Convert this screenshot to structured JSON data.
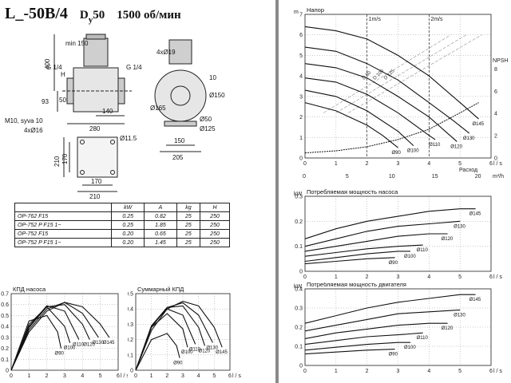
{
  "header": {
    "model": "L_-50B/4",
    "dn_prefix": "D",
    "dn_sub": "y",
    "dn_value": "50",
    "speed": "1500 об/мин"
  },
  "drawing": {
    "dims": [
      "min 150",
      "400",
      "G 1/4",
      "G 1/4",
      "4xØ19",
      "H",
      "93",
      "50",
      "140",
      "280",
      "M10, syva 10",
      "4xØ16",
      "Ø165",
      "Ø150",
      "10",
      "Ø50",
      "Ø125",
      "150",
      "205",
      "Ø11.5",
      "210",
      "170",
      "170",
      "210"
    ]
  },
  "spec_table": {
    "headers": [
      "",
      "kW",
      "A",
      "kg",
      "H"
    ],
    "rows": [
      [
        "OP-762 F15",
        "0.25",
        "0.82",
        "25",
        "250"
      ],
      [
        "OP-752 P F15 1~",
        "0.25",
        "1.85",
        "25",
        "250"
      ],
      [
        "OP-752 F15",
        "0.20",
        "0.65",
        "25",
        "250"
      ],
      [
        "OP-752 P F15 1~",
        "0.20",
        "1.45",
        "25",
        "250"
      ]
    ]
  },
  "chart_data": [
    {
      "type": "line",
      "title": "Напор",
      "xlabel": "l / s",
      "x2label": "Расход",
      "x2unit": "m³/h",
      "ylabel": "m",
      "y2label": "NPSH",
      "xlim": [
        0,
        6
      ],
      "ylim": [
        0,
        7
      ],
      "xticks": [
        "0",
        "1",
        "2",
        "3",
        "4",
        "5",
        "6"
      ],
      "yticks": [
        "0",
        "1",
        "2",
        "3",
        "4",
        "5",
        "6",
        "7"
      ],
      "x2ticks": [
        "0",
        "5",
        "10",
        "15",
        "20"
      ],
      "y2ticks": [
        "0",
        "2",
        "4",
        "6",
        "8"
      ],
      "velocity_labels": [
        "1m/s",
        "2m/s"
      ],
      "diagonal_labels": [
        "D 80",
        "D 100",
        "D 125"
      ],
      "series": [
        {
          "name": "Ø145",
          "x": [
            0,
            1,
            2,
            3,
            4,
            5,
            5.6
          ],
          "y": [
            6.4,
            6.2,
            5.8,
            5.0,
            4.0,
            2.7,
            1.9
          ]
        },
        {
          "name": "Ø130",
          "x": [
            0,
            1,
            2,
            3,
            4,
            4.8,
            5.3
          ],
          "y": [
            5.4,
            5.2,
            4.6,
            3.8,
            2.7,
            1.8,
            1.2
          ]
        },
        {
          "name": "Ø120",
          "x": [
            0,
            1,
            2,
            3,
            4,
            4.9
          ],
          "y": [
            4.6,
            4.4,
            3.9,
            3.0,
            2.0,
            0.8
          ]
        },
        {
          "name": "Ø110",
          "x": [
            0,
            1,
            2,
            3,
            4,
            4.2
          ],
          "y": [
            3.9,
            3.7,
            3.1,
            2.2,
            1.1,
            0.9
          ]
        },
        {
          "name": "Ø100",
          "x": [
            0,
            1,
            2,
            3,
            3.5
          ],
          "y": [
            3.3,
            3.0,
            2.3,
            1.3,
            0.6
          ]
        },
        {
          "name": "Ø90",
          "x": [
            0,
            1,
            2,
            2.5,
            3.0
          ],
          "y": [
            2.7,
            2.3,
            1.6,
            1.1,
            0.5
          ]
        }
      ],
      "npsh": {
        "x": [
          0,
          1,
          2,
          3,
          4,
          5,
          5.6
        ],
        "y": [
          0.25,
          0.35,
          0.55,
          0.9,
          1.4,
          2.2,
          2.7
        ]
      }
    },
    {
      "type": "line",
      "title": "Потребляемая мощность насоса",
      "xlabel": "l / s",
      "ylabel": "kW",
      "xlim": [
        0,
        6
      ],
      "ylim": [
        0,
        0.3
      ],
      "xticks": [
        "0",
        "1",
        "2",
        "3",
        "4",
        "5",
        "6"
      ],
      "yticks": [
        "0",
        "0.1",
        "0.2",
        "0.3"
      ],
      "series": [
        {
          "name": "Ø145",
          "x": [
            0,
            1,
            2,
            3,
            4,
            5,
            5.5
          ],
          "y": [
            0.13,
            0.17,
            0.2,
            0.22,
            0.24,
            0.25,
            0.25
          ]
        },
        {
          "name": "Ø130",
          "x": [
            0,
            1,
            2,
            3,
            4,
            5
          ],
          "y": [
            0.1,
            0.13,
            0.16,
            0.18,
            0.19,
            0.2
          ]
        },
        {
          "name": "Ø120",
          "x": [
            0,
            1,
            2,
            3,
            4,
            4.6
          ],
          "y": [
            0.08,
            0.1,
            0.12,
            0.14,
            0.15,
            0.15
          ]
        },
        {
          "name": "Ø110",
          "x": [
            0,
            1,
            2,
            3,
            3.8
          ],
          "y": [
            0.06,
            0.075,
            0.09,
            0.1,
            0.105
          ]
        },
        {
          "name": "Ø100",
          "x": [
            0,
            1,
            2,
            3,
            3.4
          ],
          "y": [
            0.04,
            0.055,
            0.07,
            0.08,
            0.08
          ]
        },
        {
          "name": "Ø90",
          "x": [
            0,
            1,
            2,
            2.9
          ],
          "y": [
            0.03,
            0.04,
            0.05,
            0.055
          ]
        }
      ]
    },
    {
      "type": "line",
      "title": "Потребляемая мощность двигателя",
      "xlabel": "l / s",
      "ylabel": "kW",
      "xlim": [
        0,
        6
      ],
      "ylim": [
        0,
        0.4
      ],
      "xticks": [
        "0",
        "1",
        "2",
        "3",
        "4",
        "5",
        "6"
      ],
      "yticks": [
        "0",
        "0.1",
        "0.2",
        "0.3",
        "0.4"
      ],
      "series": [
        {
          "name": "Ø145",
          "x": [
            0,
            1,
            2,
            3,
            4,
            5,
            5.5
          ],
          "y": [
            0.22,
            0.26,
            0.3,
            0.33,
            0.35,
            0.37,
            0.37
          ]
        },
        {
          "name": "Ø130",
          "x": [
            0,
            1,
            2,
            3,
            4,
            5
          ],
          "y": [
            0.18,
            0.21,
            0.24,
            0.27,
            0.28,
            0.29
          ]
        },
        {
          "name": "Ø120",
          "x": [
            0,
            1,
            2,
            3,
            4,
            4.6
          ],
          "y": [
            0.14,
            0.17,
            0.19,
            0.21,
            0.22,
            0.22
          ]
        },
        {
          "name": "Ø110",
          "x": [
            0,
            1,
            2,
            3,
            3.8
          ],
          "y": [
            0.11,
            0.13,
            0.15,
            0.16,
            0.17
          ]
        },
        {
          "name": "Ø100",
          "x": [
            0,
            1,
            2,
            3,
            3.4
          ],
          "y": [
            0.08,
            0.095,
            0.11,
            0.12,
            0.12
          ]
        },
        {
          "name": "Ø90",
          "x": [
            0,
            1,
            2,
            2.9
          ],
          "y": [
            0.06,
            0.07,
            0.08,
            0.085
          ]
        }
      ]
    },
    {
      "type": "line",
      "title": "КПД насоса",
      "xlabel": "l / s",
      "xlim": [
        0,
        6
      ],
      "ylim": [
        0,
        0.7
      ],
      "xticks": [
        "0",
        "1",
        "2",
        "3",
        "4",
        "5",
        "6"
      ],
      "yticks": [
        "0",
        "0.1",
        "0.2",
        "0.3",
        "0.4",
        "0.5",
        "0.6",
        "0.7"
      ],
      "series": [
        {
          "name": "Ø145",
          "x": [
            0,
            1,
            2,
            3,
            4,
            5,
            5.5
          ],
          "y": [
            0,
            0.35,
            0.54,
            0.62,
            0.58,
            0.42,
            0.3
          ]
        },
        {
          "name": "Ø130",
          "x": [
            0,
            1,
            2,
            3,
            4,
            4.9
          ],
          "y": [
            0,
            0.37,
            0.56,
            0.62,
            0.52,
            0.3
          ]
        },
        {
          "name": "Ø120",
          "x": [
            0,
            1,
            2,
            3,
            4,
            4.4
          ],
          "y": [
            0,
            0.39,
            0.58,
            0.6,
            0.42,
            0.28
          ]
        },
        {
          "name": "Ø110",
          "x": [
            0,
            1,
            2,
            3,
            3.8
          ],
          "y": [
            0,
            0.4,
            0.59,
            0.54,
            0.28
          ]
        },
        {
          "name": "Ø100",
          "x": [
            0,
            1,
            2,
            3,
            3.3
          ],
          "y": [
            0,
            0.42,
            0.58,
            0.4,
            0.25
          ]
        },
        {
          "name": "Ø90",
          "x": [
            0,
            1,
            2,
            2.6,
            2.8
          ],
          "y": [
            0,
            0.45,
            0.5,
            0.35,
            0.2
          ]
        }
      ]
    },
    {
      "type": "line",
      "title": "Суммарный КПД",
      "xlabel": "l / s",
      "xlim": [
        0,
        6
      ],
      "ylim": [
        0,
        0.5
      ],
      "xticks": [
        "0",
        "1",
        "2",
        "3",
        "4",
        "5",
        "6"
      ],
      "yticks": [
        "0",
        "0.1",
        "0.2",
        "0.3",
        "0.4",
        "0.5"
      ],
      "series": [
        {
          "name": "Ø145",
          "x": [
            0,
            1,
            2,
            3,
            4,
            5,
            5.5
          ],
          "y": [
            0,
            0.26,
            0.4,
            0.45,
            0.42,
            0.28,
            0.15
          ]
        },
        {
          "name": "Ø130",
          "x": [
            0,
            1,
            2,
            3,
            4,
            4.9
          ],
          "y": [
            0,
            0.28,
            0.41,
            0.44,
            0.36,
            0.18
          ]
        },
        {
          "name": "Ø120",
          "x": [
            0,
            1,
            2,
            3,
            4,
            4.4
          ],
          "y": [
            0,
            0.29,
            0.41,
            0.42,
            0.28,
            0.16
          ]
        },
        {
          "name": "Ø110",
          "x": [
            0,
            1,
            2,
            3,
            3.8
          ],
          "y": [
            0,
            0.29,
            0.4,
            0.36,
            0.17
          ]
        },
        {
          "name": "Ø100",
          "x": [
            0,
            1,
            2,
            3,
            3.3
          ],
          "y": [
            0,
            0.28,
            0.37,
            0.27,
            0.15
          ]
        },
        {
          "name": "Ø90",
          "x": [
            0,
            1,
            2,
            2.6,
            2.8
          ],
          "y": [
            0,
            0.2,
            0.24,
            0.16,
            0.08
          ]
        }
      ]
    }
  ]
}
